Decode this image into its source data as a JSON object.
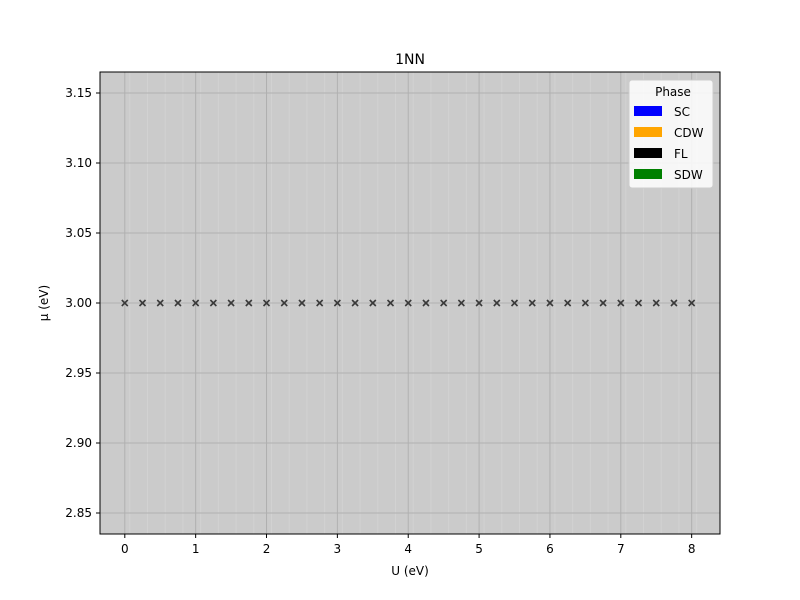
{
  "chart_data": {
    "type": "scatter",
    "title": "1NN",
    "xlabel": "U (eV)",
    "ylabel": "μ (eV)",
    "xlim": [
      -0.35,
      8.4
    ],
    "ylim": [
      2.835,
      3.165
    ],
    "xticks": [
      0,
      1,
      2,
      3,
      4,
      5,
      6,
      7,
      8
    ],
    "xtick_labels": [
      "0",
      "1",
      "2",
      "3",
      "4",
      "5",
      "6",
      "7",
      "8"
    ],
    "yticks": [
      2.85,
      2.9,
      2.95,
      3.0,
      3.05,
      3.1,
      3.15
    ],
    "ytick_labels": [
      "2.85",
      "2.90",
      "2.95",
      "3.00",
      "3.05",
      "3.10",
      "3.15"
    ],
    "grid": true,
    "background_color": "#cbcbcb",
    "marker": "x",
    "marker_color": "#3a3a3a",
    "points": {
      "x": [
        0,
        0.25,
        0.5,
        0.75,
        1,
        1.25,
        1.5,
        1.75,
        2,
        2.25,
        2.5,
        2.75,
        3,
        3.25,
        3.5,
        3.75,
        4,
        4.25,
        4.5,
        4.75,
        5,
        5.25,
        5.5,
        5.75,
        6,
        6.25,
        6.5,
        6.75,
        7,
        7.25,
        7.5,
        7.75,
        8
      ],
      "y": [
        3.0,
        3.0,
        3.0,
        3.0,
        3.0,
        3.0,
        3.0,
        3.0,
        3.0,
        3.0,
        3.0,
        3.0,
        3.0,
        3.0,
        3.0,
        3.0,
        3.0,
        3.0,
        3.0,
        3.0,
        3.0,
        3.0,
        3.0,
        3.0,
        3.0,
        3.0,
        3.0,
        3.0,
        3.0,
        3.0,
        3.0,
        3.0,
        3.0
      ]
    },
    "legend": {
      "title": "Phase",
      "placement": "top-right",
      "entries": [
        {
          "label": "SC",
          "color": "#0000ff"
        },
        {
          "label": "CDW",
          "color": "#ffa500"
        },
        {
          "label": "FL",
          "color": "#000000"
        },
        {
          "label": "SDW",
          "color": "#008000"
        }
      ]
    }
  }
}
